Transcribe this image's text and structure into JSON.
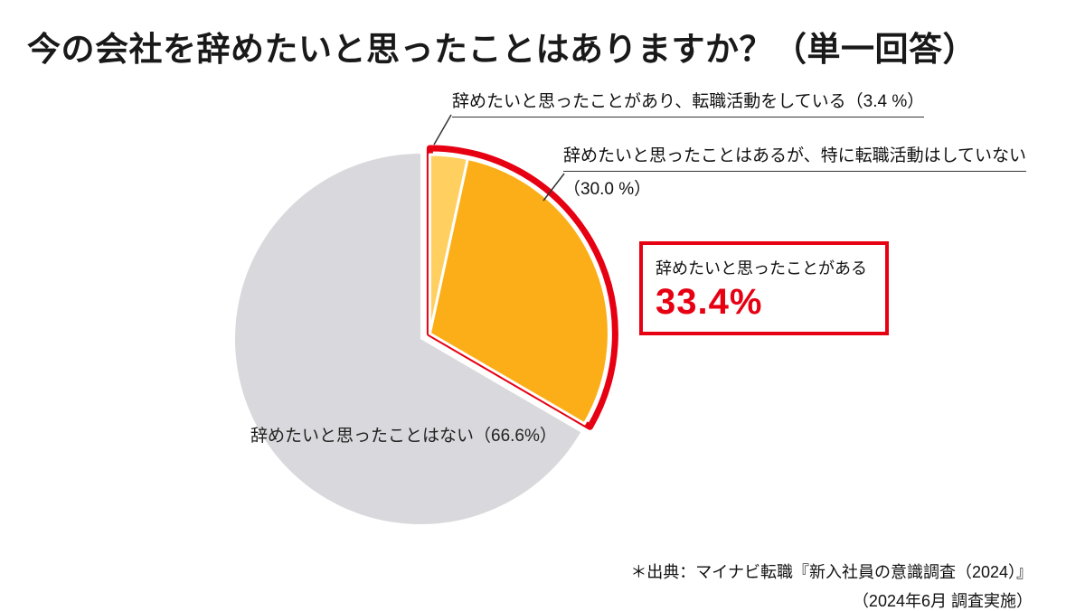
{
  "header": {
    "title": "今の会社を辞めたいと思ったことはありますか？（単一回答）"
  },
  "chart_data": {
    "type": "pie",
    "title": "今の会社を辞めたいと思ったことはありますか？（単一回答）",
    "direction": "clockwise",
    "start_angle": "top",
    "legend_position": "none",
    "slices": [
      {
        "label": "辞めたいと思ったことがあり、転職活動をしている",
        "display": "辞めたいと思ったことがあり、転職活動をしている（3.4 %）",
        "value": 3.4,
        "color": "#FFD060"
      },
      {
        "label": "辞めたいと思ったことはあるが、特に転職活動はしていない",
        "display_line1": "辞めたいと思ったことはあるが、特に転職活動はしていない",
        "display_line2": "（30.0 %）",
        "value": 30.0,
        "color": "#FBAE17"
      },
      {
        "label": "辞めたいと思ったことはない",
        "display": "辞めたいと思ったことはない（66.6%）",
        "value": 66.6,
        "color": "#D9D9DD"
      }
    ],
    "highlight": {
      "label": "辞めたいと思ったことがある",
      "value_text": "33.4%",
      "value": 33.4,
      "color": "#E60012"
    }
  },
  "source": {
    "line1": "＊出典：マイナビ転職『新入社員の意識調査（2024）』",
    "line2": "（2024年6月 調査実施）"
  },
  "colors": {
    "accent_red": "#E60012",
    "orange_main": "#FBAE17",
    "orange_light": "#FFD060",
    "gray_slice": "#D9D9DD",
    "background": "#FFFFFF"
  }
}
